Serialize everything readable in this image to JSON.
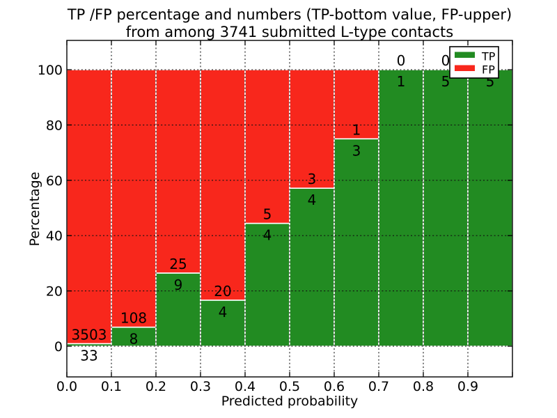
{
  "colors": {
    "tp_green": "#228B22",
    "fp_red": "#F8271C",
    "bar_edge": "#FFFFFF",
    "grid": "#111111",
    "frame": "#000000",
    "legend_bg": "#FFFFFF"
  },
  "chart_data": {
    "type": "bar",
    "stacked": true,
    "normalized_to_percent": true,
    "title_lines": [
      "TP /FP percentage and numbers (TP-bottom value, FP-upper)",
      "from among 3741 submitted L-type contacts"
    ],
    "xlabel": "Predicted probability",
    "ylabel": "Percentage",
    "x_ticks": [
      "0.0",
      "0.1",
      "0.2",
      "0.3",
      "0.4",
      "0.5",
      "0.6",
      "0.7",
      "0.8",
      "0.9"
    ],
    "y_ticks": [
      0,
      20,
      40,
      60,
      80,
      100
    ],
    "xlim": [
      0.0,
      1.0
    ],
    "bin_width": 0.1,
    "bin_starts": [
      0.0,
      0.1,
      0.2,
      0.3,
      0.4,
      0.5,
      0.6,
      0.7,
      0.8,
      0.9
    ],
    "total_contacts": 3741,
    "series": [
      {
        "name": "TP",
        "position": "bottom",
        "color": "#228B22",
        "counts": [
          33,
          8,
          9,
          4,
          4,
          4,
          3,
          1,
          5,
          5
        ]
      },
      {
        "name": "FP",
        "position": "top",
        "color": "#F8271C",
        "counts": [
          3503,
          108,
          25,
          20,
          5,
          3,
          1,
          0,
          0,
          0
        ]
      }
    ],
    "tp_percent": [
      0.93,
      6.9,
      26.47,
      16.67,
      44.44,
      57.14,
      75.0,
      100.0,
      100.0,
      100.0
    ],
    "legend": {
      "position": "upper right",
      "entries": [
        "TP",
        "FP"
      ]
    },
    "grid": {
      "visible": true,
      "style": "dotted"
    }
  }
}
